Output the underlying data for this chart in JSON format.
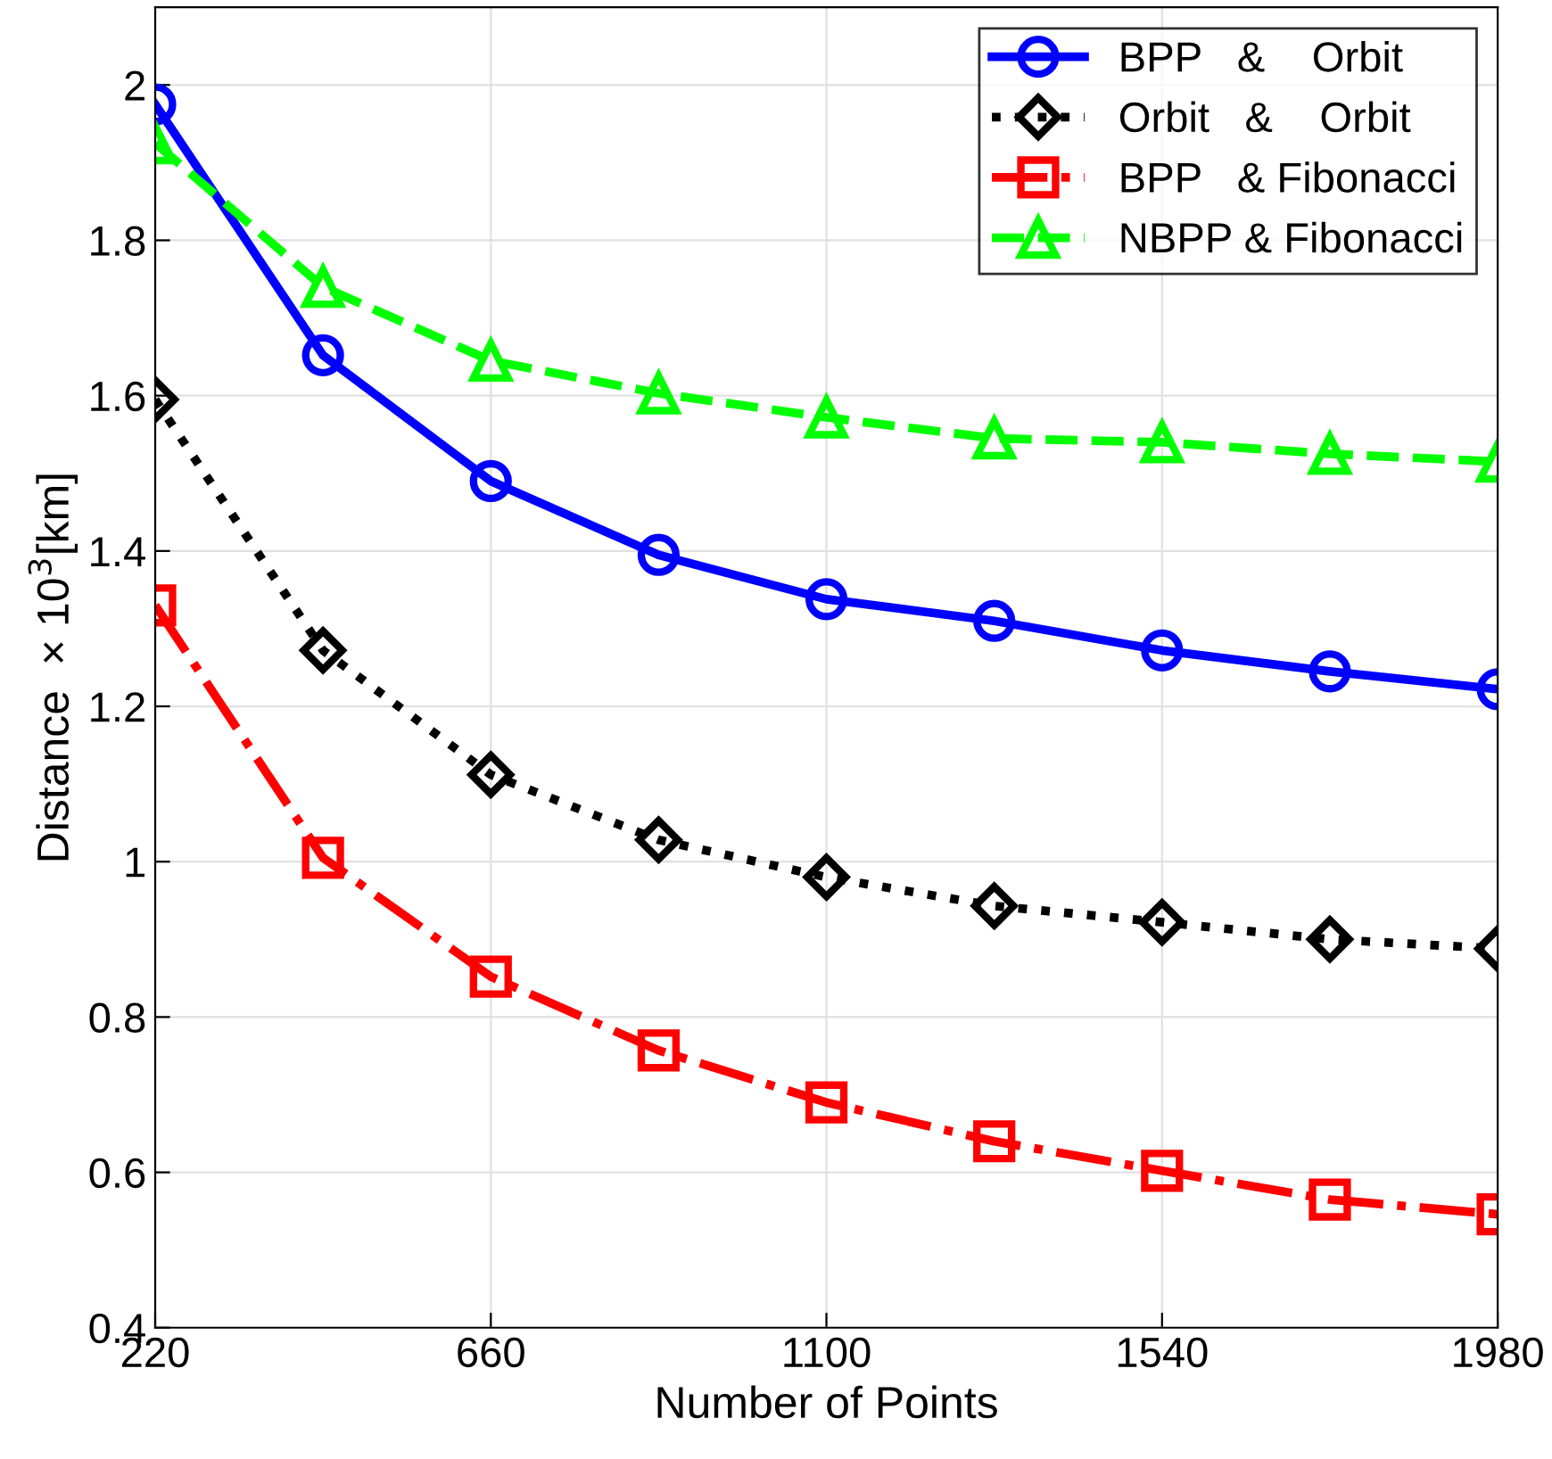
{
  "chart_data": {
    "type": "line",
    "xlabel": "Number of Points",
    "ylabel": "Distance  × 10$^{3}$[km]",
    "x": [
      220,
      440,
      660,
      880,
      1100,
      1320,
      1540,
      1760,
      1980
    ],
    "series": [
      {
        "name": "BPP   &    Orbit",
        "color": "#0000ff",
        "marker": "circle",
        "line_style": "solid",
        "values": [
          1.975,
          1.652,
          1.49,
          1.395,
          1.338,
          1.31,
          1.272,
          1.245,
          1.222
        ]
      },
      {
        "name": "Orbit   &    Orbit",
        "color": "#000000",
        "marker": "diamond",
        "line_style": "dotted",
        "values": [
          1.595,
          1.272,
          1.112,
          1.028,
          0.98,
          0.943,
          0.922,
          0.9,
          0.888
        ]
      },
      {
        "name": "BPP   & Fibonacci",
        "color": "#ff0000",
        "marker": "square",
        "line_style": "dashdot",
        "values": [
          1.33,
          1.005,
          0.852,
          0.757,
          0.69,
          0.64,
          0.602,
          0.565,
          0.546
        ]
      },
      {
        "name": "NBPP & Fibonacci",
        "color": "#00ff00",
        "marker": "triangle",
        "line_style": "dashed",
        "values": [
          1.925,
          1.74,
          1.645,
          1.603,
          1.572,
          1.545,
          1.54,
          1.525,
          1.515
        ]
      }
    ],
    "xlim": [
      220,
      1980
    ],
    "xticks": [
      220,
      660,
      1100,
      1540,
      1980
    ],
    "ylim": [
      0.4,
      2.1
    ],
    "yticks": [
      0.4,
      0.6,
      0.8,
      1,
      1.2,
      1.4,
      1.6,
      1.8,
      2
    ],
    "grid": true,
    "legend": "top right"
  }
}
